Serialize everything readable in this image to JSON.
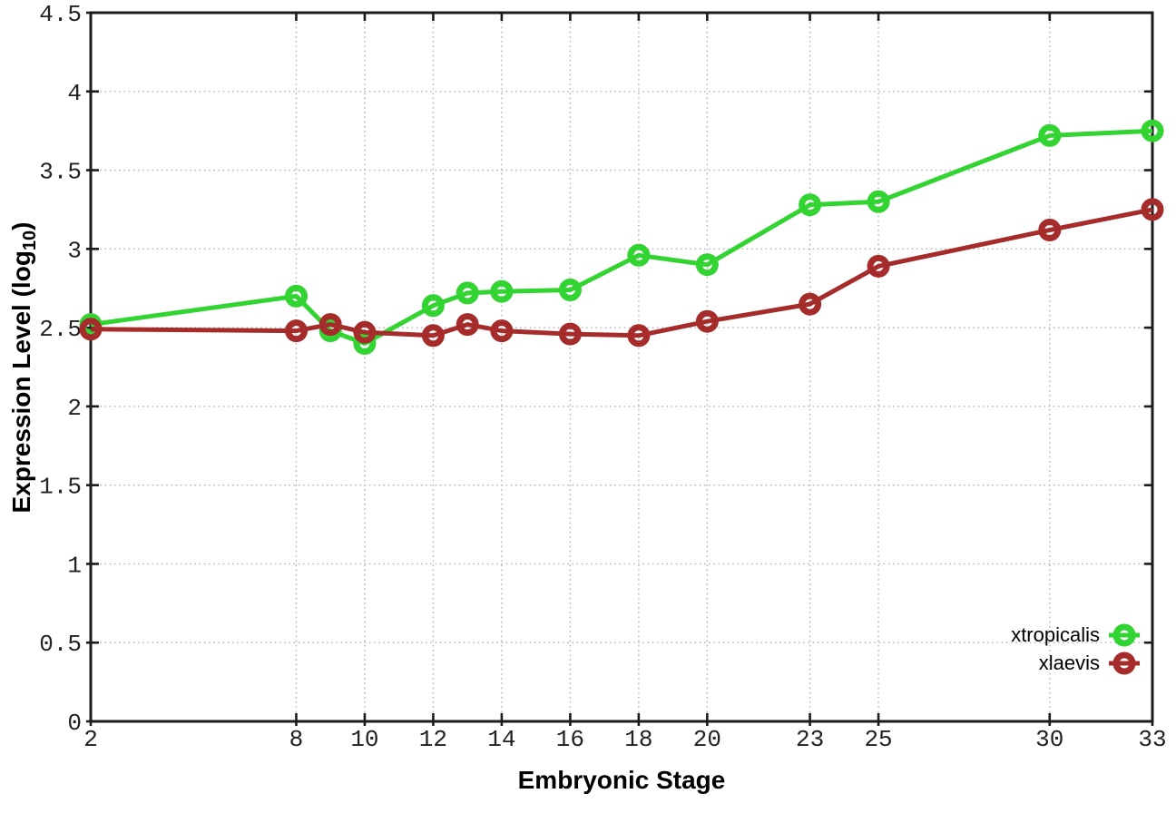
{
  "figure": {
    "background": "#ffffff",
    "axis_color": "#1c1c1c",
    "grid_color": "#b3b3b3",
    "tick_label_color": "#222222"
  },
  "chart_data": {
    "type": "line",
    "title": "",
    "xlabel": "Embryonic Stage",
    "ylabel": "Expression Level (log10)",
    "ylabel_parts": {
      "main": "Expression Level (log",
      "sub": "10",
      "close": ")"
    },
    "xlim": [
      2,
      33
    ],
    "ylim": [
      0,
      4.5
    ],
    "grid": true,
    "legend_position": "bottom-right-inside",
    "x_ticks": [
      2,
      8,
      10,
      12,
      14,
      16,
      18,
      20,
      23,
      25,
      30,
      33
    ],
    "x_tick_labels": [
      "2",
      "8",
      "10",
      "12",
      "14",
      "16",
      "18",
      "20",
      "23",
      "25",
      "30",
      "33"
    ],
    "y_ticks": [
      0,
      0.5,
      1,
      1.5,
      2,
      2.5,
      3,
      3.5,
      4,
      4.5
    ],
    "y_tick_labels": [
      "0",
      "0.5",
      "1",
      "1.5",
      "2",
      "2.5",
      "3",
      "3.5",
      "4",
      "4.5"
    ],
    "x": [
      2,
      8,
      9,
      10,
      12,
      13,
      14,
      16,
      18,
      20,
      23,
      25,
      30,
      33
    ],
    "series": [
      {
        "name": "xtropicalis",
        "color": "#31d431",
        "marker": "open-circle",
        "values": [
          2.52,
          2.7,
          2.48,
          2.4,
          2.64,
          2.72,
          2.73,
          2.74,
          2.96,
          2.9,
          3.28,
          3.3,
          3.72,
          3.75
        ]
      },
      {
        "name": "xlaevis",
        "color": "#a62b2b",
        "marker": "open-circle",
        "values": [
          2.49,
          2.48,
          2.52,
          2.47,
          2.45,
          2.52,
          2.48,
          2.46,
          2.45,
          2.54,
          2.65,
          2.89,
          3.12,
          3.25
        ]
      }
    ]
  }
}
